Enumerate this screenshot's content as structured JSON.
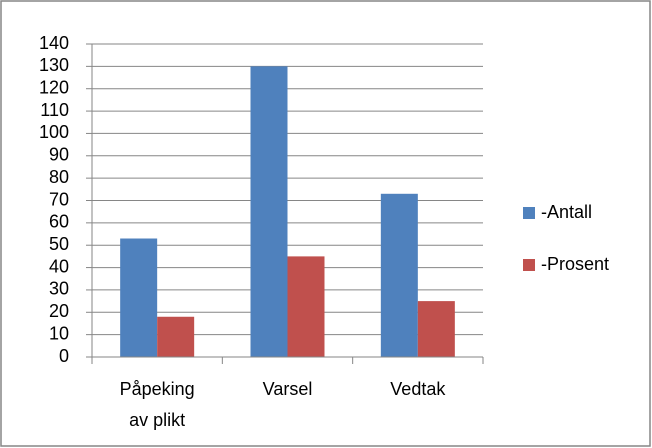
{
  "chart_data": {
    "type": "bar",
    "categories": [
      "Påpeking av plikt",
      "Varsel",
      "Vedtak"
    ],
    "series": [
      {
        "name": "-Antall",
        "color": "#4f81bd",
        "values": [
          53,
          130,
          73
        ]
      },
      {
        "name": "-Prosent",
        "color": "#c0504d",
        "values": [
          18,
          45,
          25
        ]
      }
    ],
    "ylim": [
      0,
      140
    ],
    "yticks": [
      0,
      10,
      20,
      30,
      40,
      50,
      60,
      70,
      80,
      90,
      100,
      110,
      120,
      130,
      140
    ],
    "grid": true,
    "legend": "right"
  }
}
